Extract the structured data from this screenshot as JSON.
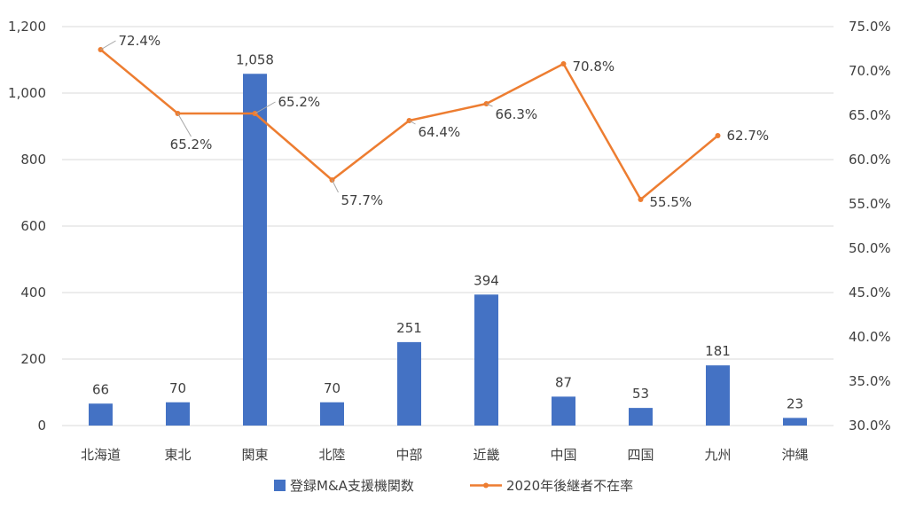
{
  "chart_data": {
    "type": "bar",
    "categories": [
      "北海道",
      "東北",
      "関東",
      "北陸",
      "中部",
      "近畿",
      "中国",
      "四国",
      "九州",
      "沖縄"
    ],
    "series": [
      {
        "name": "登録M&A支援機関数",
        "type": "bar",
        "axis": "left",
        "color": "#4472C4",
        "values": [
          66,
          70,
          1058,
          70,
          251,
          394,
          87,
          53,
          181,
          23
        ],
        "labels": [
          "66",
          "70",
          "1,058",
          "70",
          "251",
          "394",
          "87",
          "53",
          "181",
          "23"
        ]
      },
      {
        "name": "2020年後継者不在率",
        "type": "line",
        "axis": "right",
        "color": "#ED7D31",
        "values": [
          72.4,
          65.2,
          65.2,
          57.7,
          64.4,
          66.3,
          70.8,
          55.5,
          62.7,
          null
        ],
        "labels": [
          "72.4%",
          "65.2%",
          "65.2%",
          "57.7%",
          "64.4%",
          "66.3%",
          "70.8%",
          "55.5%",
          "62.7%",
          ""
        ]
      }
    ],
    "y_left": {
      "ylim": [
        0,
        1200
      ],
      "ticks": [
        "0",
        "200",
        "400",
        "600",
        "800",
        "1,000",
        "1,200"
      ]
    },
    "y_right": {
      "ylim": [
        30.0,
        75.0
      ],
      "ticks": [
        "30.0%",
        "35.0%",
        "40.0%",
        "45.0%",
        "50.0%",
        "55.0%",
        "60.0%",
        "65.0%",
        "70.0%",
        "75.0%"
      ]
    },
    "grid": true,
    "legend_position": "bottom"
  }
}
